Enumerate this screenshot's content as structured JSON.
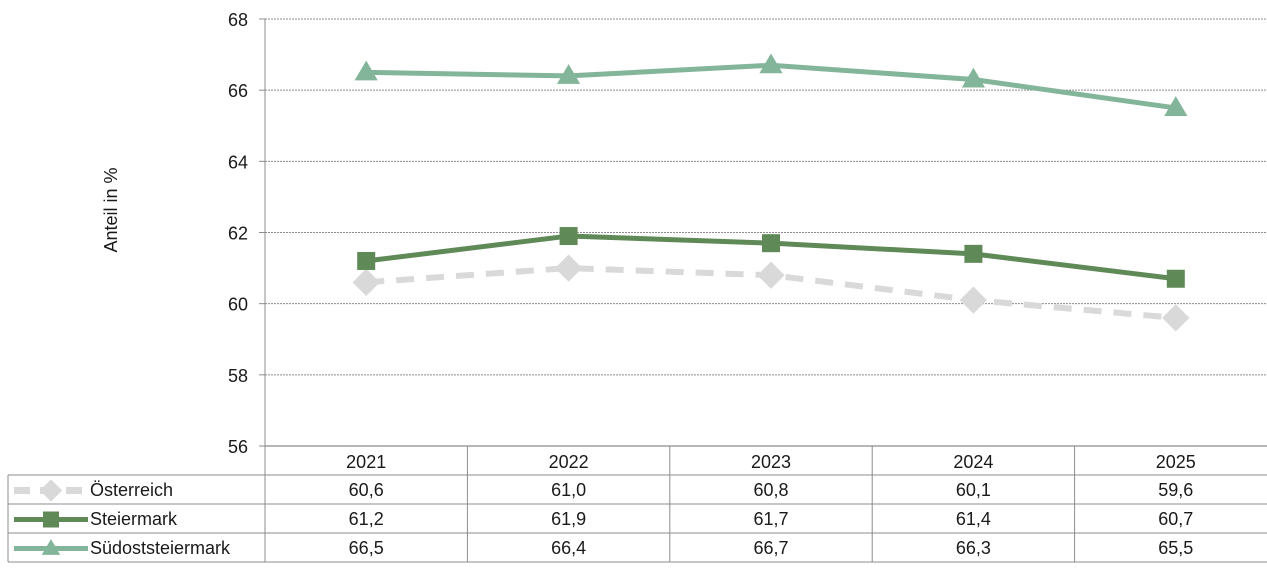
{
  "chart_data": {
    "type": "line",
    "title": "",
    "xlabel": "",
    "ylabel": "Anteil in %",
    "ylim": [
      56,
      68
    ],
    "yticks": [
      56,
      58,
      60,
      62,
      64,
      66,
      68
    ],
    "grid": true,
    "legend": "data table",
    "categories": [
      "2021",
      "2022",
      "2023",
      "2024",
      "2025"
    ],
    "series": [
      {
        "name": "Österreich",
        "values": [
          60.6,
          61.0,
          60.8,
          60.1,
          59.6
        ],
        "labels": [
          "60,6",
          "61,0",
          "60,8",
          "60,1",
          "59,6"
        ],
        "color": "#d9d9d9",
        "marker": "diamond",
        "dashed": true
      },
      {
        "name": "Steiermark",
        "values": [
          61.2,
          61.9,
          61.7,
          61.4,
          60.7
        ],
        "labels": [
          "61,2",
          "61,9",
          "61,7",
          "61,4",
          "60,7"
        ],
        "color": "#5f8a57",
        "marker": "square",
        "dashed": false
      },
      {
        "name": "Südoststeiermark",
        "values": [
          66.5,
          66.4,
          66.7,
          66.3,
          65.5
        ],
        "labels": [
          "66,5",
          "66,4",
          "66,7",
          "66,3",
          "65,5"
        ],
        "color": "#83b59a",
        "marker": "triangle",
        "dashed": false
      }
    ]
  }
}
